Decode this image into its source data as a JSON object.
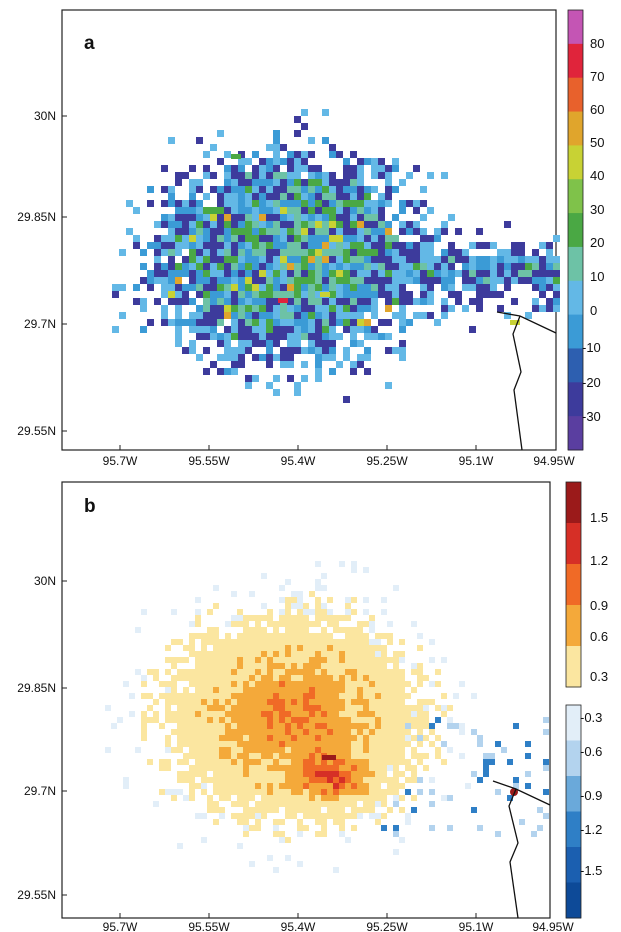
{
  "panels": [
    {
      "label": "a",
      "lat_ticks": [
        "30N",
        "29.85N",
        "29.7N",
        "29.55N"
      ],
      "lon_ticks": [
        "95.7W",
        "95.55W",
        "95.4W",
        "95.25W",
        "95.1W",
        "94.95W"
      ],
      "colorbar": {
        "labels": [
          "80",
          "70",
          "60",
          "50",
          "40",
          "30",
          "20",
          "10",
          "0",
          "-10",
          "-20",
          "-30"
        ],
        "colors": [
          "#c455b4",
          "#e0243b",
          "#e8612c",
          "#e0a52c",
          "#c8d234",
          "#7fc24a",
          "#4aa844",
          "#6dc2a6",
          "#63b8e6",
          "#3b9bd6",
          "#2d5fb0",
          "#3d3b9c",
          "#5a3ea0"
        ]
      },
      "colors": {
        "light_blue": "#63b8e6",
        "mid_blue": "#3b9bd6",
        "dark_blue": "#2d5fb0",
        "indigo": "#3d3b9c",
        "teal": "#6dc2a6",
        "green": "#4aa844",
        "yellow": "#c8d234",
        "orange": "#e0a52c",
        "red": "#e0243b"
      }
    },
    {
      "label": "b",
      "lat_ticks": [
        "30N",
        "29.85N",
        "29.7N",
        "29.55N"
      ],
      "lon_ticks": [
        "95.7W",
        "95.55W",
        "95.4W",
        "95.25W",
        "95.1W",
        "94.95W"
      ],
      "colorbar_positive": {
        "labels": [
          "1.5",
          "1.2",
          "0.9",
          "0.6",
          "0.3"
        ],
        "colors": [
          "#9b1a1a",
          "#d62f26",
          "#f06a26",
          "#f4a93a",
          "#fbe6a0"
        ]
      },
      "colorbar_negative": {
        "labels": [
          "-0.3",
          "-0.6",
          "-0.9",
          "-1.2",
          "-1.5"
        ],
        "colors": [
          "#e2eef8",
          "#b3d3ee",
          "#6aa9da",
          "#2f7fc6",
          "#1b5fb0",
          "#0d4a98"
        ]
      },
      "colors": {
        "pale": "#fbe6a0",
        "light_orange": "#f4a93a",
        "orange": "#f06a26",
        "red": "#d62f26",
        "dark_red": "#9b1a1a",
        "pale_blue": "#e2eef8",
        "light_blue": "#b3d3ee",
        "blue": "#2f7fc6"
      }
    }
  ]
}
